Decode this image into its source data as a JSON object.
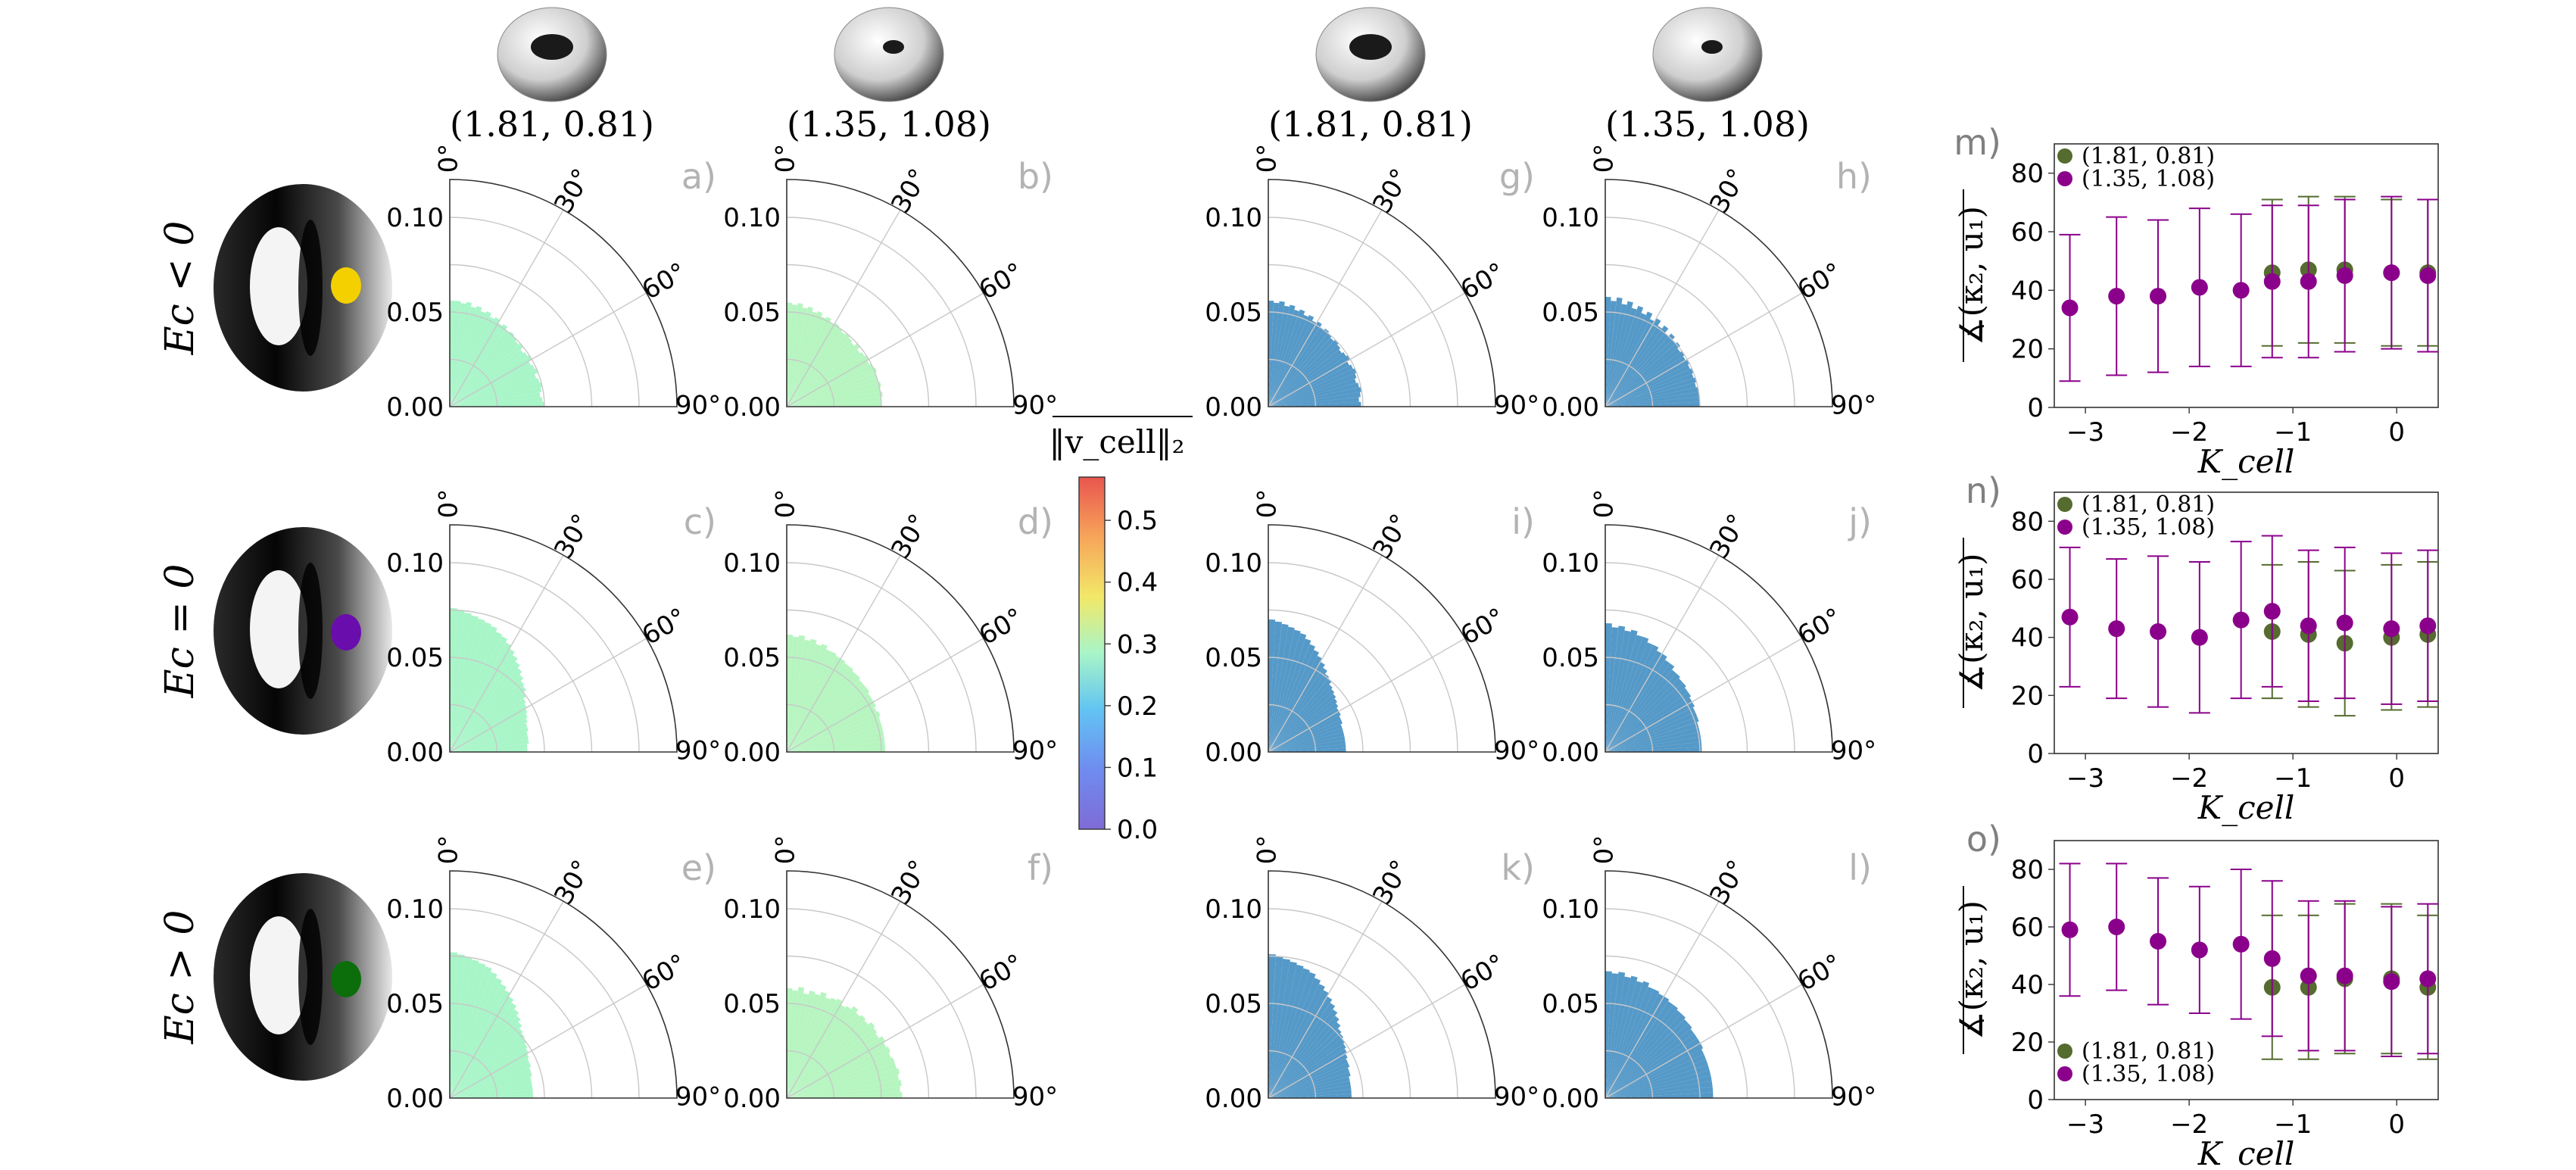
{
  "figure": {
    "row_labels": [
      "Ec < 0",
      "Ec = 0",
      "Ec > 0"
    ],
    "column_headers": [
      "(1.81, 0.81)",
      "(1.35, 1.08)",
      "(1.81, 0.81)",
      "(1.35, 1.08)"
    ],
    "dot_colors": [
      "#f5d000",
      "#6a0dad",
      "#0b6e0b"
    ],
    "polar_angle_labels": [
      "0°",
      "30°",
      "60°",
      "90°"
    ],
    "polar_radial_ticks": [
      "0.00",
      "0.05",
      "0.10"
    ],
    "colorbar": {
      "label": "‖v_cell‖₂",
      "ticks": [
        "0.0",
        "0.1",
        "0.2",
        "0.3",
        "0.4",
        "0.5"
      ],
      "range": [
        0,
        0.57
      ]
    },
    "scatter": {
      "xlabel": "K_cell",
      "ylabel": "∡(κ₂, u₁)",
      "xticks": [
        "−3",
        "−2",
        "−1",
        "0"
      ],
      "yticks": [
        "0",
        "20",
        "40",
        "60",
        "80"
      ],
      "series_names": [
        "(1.81, 0.81)",
        "(1.35, 1.08)"
      ],
      "series_colors": [
        "#556b2f",
        "#8b008b"
      ]
    }
  },
  "chart_data": [
    {
      "type": "polar-histogram",
      "panel": "a)",
      "fill": "#a8f5c8",
      "rlim": [
        0,
        0.12
      ],
      "theta_range_deg": [
        0,
        90
      ],
      "radii": [
        0.056,
        0.056,
        0.055,
        0.056,
        0.054,
        0.055,
        0.053,
        0.054,
        0.052,
        0.053,
        0.051,
        0.052,
        0.05,
        0.051,
        0.05,
        0.049,
        0.05,
        0.048,
        0.049,
        0.05,
        0.048,
        0.049,
        0.05,
        0.048,
        0.049,
        0.05,
        0.049,
        0.048,
        0.049,
        0.05
      ]
    },
    {
      "type": "polar-histogram",
      "panel": "b)",
      "fill": "#b6f5c0",
      "rlim": [
        0,
        0.12
      ],
      "theta_range_deg": [
        0,
        90
      ],
      "radii": [
        0.055,
        0.054,
        0.055,
        0.053,
        0.054,
        0.052,
        0.053,
        0.051,
        0.052,
        0.05,
        0.051,
        0.05,
        0.049,
        0.05,
        0.049,
        0.048,
        0.05,
        0.048,
        0.049,
        0.05,
        0.049,
        0.05,
        0.051,
        0.05,
        0.05,
        0.051,
        0.05,
        0.051,
        0.05,
        0.05
      ]
    },
    {
      "type": "polar-histogram",
      "panel": "c)",
      "fill": "#a8f5c8",
      "rlim": [
        0,
        0.12
      ],
      "theta_range_deg": [
        0,
        90
      ],
      "radii": [
        0.076,
        0.075,
        0.074,
        0.073,
        0.072,
        0.071,
        0.07,
        0.068,
        0.067,
        0.065,
        0.063,
        0.061,
        0.059,
        0.057,
        0.055,
        0.053,
        0.052,
        0.05,
        0.048,
        0.047,
        0.046,
        0.045,
        0.044,
        0.043,
        0.043,
        0.042,
        0.042,
        0.042,
        0.041,
        0.041
      ]
    },
    {
      "type": "polar-histogram",
      "panel": "d)",
      "fill": "#b6f5c0",
      "rlim": [
        0,
        0.12
      ],
      "theta_range_deg": [
        0,
        90
      ],
      "radii": [
        0.062,
        0.061,
        0.062,
        0.06,
        0.061,
        0.059,
        0.06,
        0.058,
        0.058,
        0.057,
        0.057,
        0.056,
        0.056,
        0.055,
        0.055,
        0.054,
        0.054,
        0.054,
        0.053,
        0.053,
        0.053,
        0.052,
        0.053,
        0.052,
        0.052,
        0.052,
        0.052,
        0.052,
        0.052,
        0.052
      ]
    },
    {
      "type": "polar-histogram",
      "panel": "e)",
      "fill": "#a8f5c8",
      "rlim": [
        0,
        0.12
      ],
      "theta_range_deg": [
        0,
        90
      ],
      "radii": [
        0.077,
        0.076,
        0.075,
        0.074,
        0.073,
        0.072,
        0.07,
        0.068,
        0.066,
        0.064,
        0.062,
        0.06,
        0.058,
        0.056,
        0.054,
        0.052,
        0.051,
        0.05,
        0.049,
        0.048,
        0.047,
        0.046,
        0.046,
        0.045,
        0.045,
        0.044,
        0.044,
        0.044,
        0.044,
        0.044
      ]
    },
    {
      "type": "polar-histogram",
      "panel": "f)",
      "fill": "#b6f5c0",
      "rlim": [
        0,
        0.12
      ],
      "theta_range_deg": [
        0,
        90
      ],
      "radii": [
        0.058,
        0.057,
        0.059,
        0.056,
        0.058,
        0.057,
        0.059,
        0.057,
        0.058,
        0.059,
        0.057,
        0.058,
        0.06,
        0.058,
        0.059,
        0.058,
        0.06,
        0.059,
        0.058,
        0.06,
        0.059,
        0.06,
        0.059,
        0.06,
        0.06,
        0.061,
        0.06,
        0.061,
        0.06,
        0.061
      ]
    },
    {
      "type": "polar-histogram",
      "panel": "g)",
      "fill": "#5599c8",
      "rlim": [
        0,
        0.12
      ],
      "theta_range_deg": [
        0,
        90
      ],
      "radii": [
        0.056,
        0.055,
        0.056,
        0.054,
        0.055,
        0.053,
        0.054,
        0.052,
        0.053,
        0.051,
        0.052,
        0.05,
        0.051,
        0.05,
        0.049,
        0.05,
        0.049,
        0.048,
        0.049,
        0.05,
        0.048,
        0.049,
        0.05,
        0.049,
        0.048,
        0.049,
        0.05,
        0.049,
        0.048,
        0.049
      ]
    },
    {
      "type": "polar-histogram",
      "panel": "h)",
      "fill": "#5599c8",
      "rlim": [
        0,
        0.12
      ],
      "theta_range_deg": [
        0,
        90
      ],
      "radii": [
        0.058,
        0.056,
        0.058,
        0.055,
        0.057,
        0.054,
        0.056,
        0.053,
        0.055,
        0.052,
        0.054,
        0.051,
        0.053,
        0.05,
        0.052,
        0.05,
        0.051,
        0.049,
        0.05,
        0.049,
        0.05,
        0.049,
        0.05,
        0.049,
        0.05,
        0.049,
        0.05,
        0.05,
        0.05,
        0.05
      ]
    },
    {
      "type": "polar-histogram",
      "panel": "i)",
      "fill": "#5599c8",
      "rlim": [
        0,
        0.12
      ],
      "theta_range_deg": [
        0,
        90
      ],
      "radii": [
        0.07,
        0.069,
        0.068,
        0.067,
        0.066,
        0.065,
        0.063,
        0.061,
        0.059,
        0.057,
        0.055,
        0.053,
        0.051,
        0.05,
        0.048,
        0.047,
        0.046,
        0.045,
        0.044,
        0.043,
        0.043,
        0.042,
        0.042,
        0.041,
        0.041,
        0.041,
        0.041,
        0.041,
        0.041,
        0.041
      ]
    },
    {
      "type": "polar-histogram",
      "panel": "j)",
      "fill": "#5599c8",
      "rlim": [
        0,
        0.12
      ],
      "theta_range_deg": [
        0,
        90
      ],
      "radii": [
        0.068,
        0.066,
        0.067,
        0.065,
        0.066,
        0.064,
        0.064,
        0.062,
        0.062,
        0.06,
        0.06,
        0.058,
        0.058,
        0.056,
        0.056,
        0.055,
        0.055,
        0.054,
        0.054,
        0.053,
        0.053,
        0.052,
        0.052,
        0.052,
        0.051,
        0.051,
        0.051,
        0.051,
        0.051,
        0.051
      ]
    },
    {
      "type": "polar-histogram",
      "panel": "k)",
      "fill": "#5599c8",
      "rlim": [
        0,
        0.12
      ],
      "theta_range_deg": [
        0,
        90
      ],
      "radii": [
        0.076,
        0.075,
        0.074,
        0.073,
        0.072,
        0.071,
        0.07,
        0.068,
        0.066,
        0.064,
        0.062,
        0.06,
        0.058,
        0.056,
        0.054,
        0.052,
        0.051,
        0.05,
        0.049,
        0.048,
        0.047,
        0.046,
        0.046,
        0.045,
        0.045,
        0.044,
        0.044,
        0.044,
        0.044,
        0.044
      ]
    },
    {
      "type": "polar-histogram",
      "panel": "l)",
      "fill": "#5599c8",
      "rlim": [
        0,
        0.12
      ],
      "theta_range_deg": [
        0,
        90
      ],
      "radii": [
        0.067,
        0.066,
        0.067,
        0.065,
        0.066,
        0.064,
        0.065,
        0.063,
        0.063,
        0.062,
        0.062,
        0.061,
        0.061,
        0.06,
        0.06,
        0.059,
        0.059,
        0.058,
        0.058,
        0.058,
        0.058,
        0.057,
        0.057,
        0.057,
        0.057,
        0.057,
        0.057,
        0.057,
        0.057,
        0.057
      ]
    },
    {
      "type": "scatter",
      "panel": "m)",
      "xlim": [
        -3.3,
        0.4
      ],
      "ylim": [
        0,
        90
      ],
      "legend": "top-left",
      "series": [
        {
          "name": "(1.81, 0.81)",
          "color": "#556b2f",
          "x": [
            -1.2,
            -0.85,
            -0.5,
            -0.05,
            0.3
          ],
          "y": [
            46,
            47,
            47,
            46,
            46
          ],
          "err": [
            25,
            25,
            25,
            25,
            25
          ]
        },
        {
          "name": "(1.35, 1.08)",
          "color": "#8b008b",
          "x": [
            -3.15,
            -2.7,
            -2.3,
            -1.9,
            -1.5,
            -1.2,
            -0.85,
            -0.5,
            -0.05,
            0.3
          ],
          "y": [
            34,
            38,
            38,
            41,
            40,
            43,
            43,
            45,
            46,
            45
          ],
          "err": [
            25,
            27,
            26,
            27,
            26,
            26,
            26,
            26,
            26,
            26
          ]
        }
      ]
    },
    {
      "type": "scatter",
      "panel": "n)",
      "xlim": [
        -3.3,
        0.4
      ],
      "ylim": [
        0,
        90
      ],
      "legend": "top-left",
      "series": [
        {
          "name": "(1.81, 0.81)",
          "color": "#556b2f",
          "x": [
            -1.2,
            -0.85,
            -0.5,
            -0.05,
            0.3
          ],
          "y": [
            42,
            41,
            38,
            40,
            41
          ],
          "err": [
            23,
            25,
            25,
            25,
            25
          ]
        },
        {
          "name": "(1.35, 1.08)",
          "color": "#8b008b",
          "x": [
            -3.15,
            -2.7,
            -2.3,
            -1.9,
            -1.5,
            -1.2,
            -0.85,
            -0.5,
            -0.05,
            0.3
          ],
          "y": [
            47,
            43,
            42,
            40,
            46,
            49,
            44,
            45,
            43,
            44
          ],
          "err": [
            24,
            24,
            26,
            26,
            27,
            26,
            26,
            26,
            26,
            26
          ]
        }
      ]
    },
    {
      "type": "scatter",
      "panel": "o)",
      "xlim": [
        -3.3,
        0.4
      ],
      "ylim": [
        0,
        90
      ],
      "legend": "bottom-left",
      "series": [
        {
          "name": "(1.81, 0.81)",
          "color": "#556b2f",
          "x": [
            -1.2,
            -0.85,
            -0.5,
            -0.05,
            0.3
          ],
          "y": [
            39,
            39,
            42,
            42,
            39
          ],
          "err": [
            25,
            25,
            26,
            26,
            25
          ]
        },
        {
          "name": "(1.35, 1.08)",
          "color": "#8b008b",
          "x": [
            -3.15,
            -2.7,
            -2.3,
            -1.9,
            -1.5,
            -1.2,
            -0.85,
            -0.5,
            -0.05,
            0.3
          ],
          "y": [
            59,
            60,
            55,
            52,
            54,
            49,
            43,
            43,
            41,
            42
          ],
          "err": [
            23,
            22,
            22,
            22,
            26,
            27,
            26,
            26,
            26,
            26
          ]
        }
      ]
    }
  ]
}
